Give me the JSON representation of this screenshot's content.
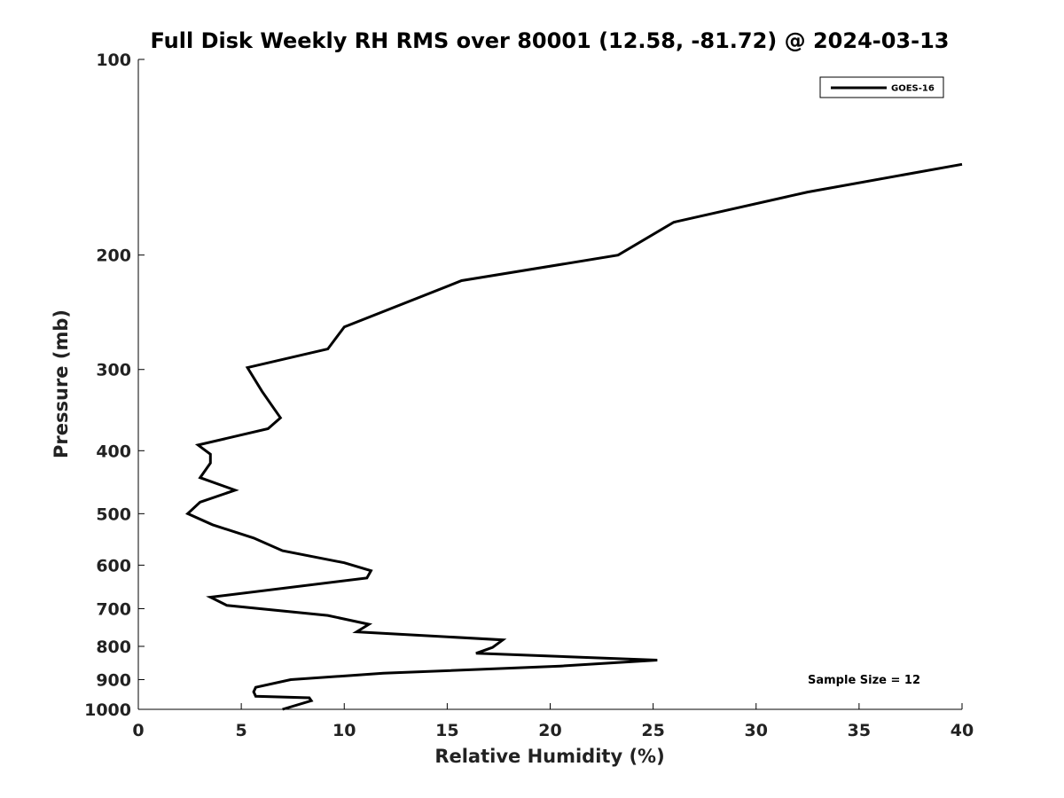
{
  "chart_data": {
    "type": "line",
    "title": "Full Disk Weekly RH RMS over 80001 (12.58, -81.72) @ 2024-03-13",
    "xlabel": "Relative Humidity (%)",
    "ylabel": "Pressure (mb)",
    "xlim": [
      0,
      40
    ],
    "ylim": [
      100,
      1000
    ],
    "yscale": "log-reversed",
    "grid": false,
    "legend_position": "top-right",
    "x_ticks": [
      0,
      5,
      10,
      15,
      20,
      25,
      30,
      35,
      40
    ],
    "x_tick_labels": [
      "0",
      "5",
      "10",
      "15",
      "20",
      "25",
      "30",
      "35",
      "40"
    ],
    "y_ticks": [
      100,
      200,
      300,
      400,
      500,
      600,
      700,
      800,
      900,
      1000
    ],
    "y_tick_labels": [
      "100",
      "200",
      "300",
      "400",
      "500",
      "600",
      "700",
      "800",
      "900",
      "1000"
    ],
    "series": [
      {
        "name": "GOES-16",
        "color": "#000000",
        "x": [
          40.0,
          32.5,
          26.0,
          23.3,
          15.7,
          10.0,
          9.2,
          5.3,
          6.0,
          6.6,
          6.9,
          6.3,
          2.9,
          3.5,
          3.5,
          3.0,
          4.7,
          3.0,
          2.4,
          3.6,
          5.6,
          7.0,
          10.0,
          11.3,
          11.1,
          3.5,
          4.3,
          9.2,
          11.2,
          10.6,
          17.7,
          17.2,
          16.4,
          25.2,
          20.5,
          11.9,
          7.4,
          5.7,
          5.6,
          5.7,
          8.3,
          8.4,
          7.0
        ],
        "y": [
          145,
          160,
          178,
          200,
          219,
          258,
          279,
          298,
          324,
          345,
          356,
          370,
          392,
          405,
          418,
          440,
          460,
          480,
          500,
          520,
          545,
          570,
          595,
          612,
          628,
          672,
          692,
          717,
          740,
          760,
          782,
          803,
          820,
          840,
          858,
          880,
          900,
          925,
          940,
          955,
          960,
          970,
          1000
        ]
      }
    ],
    "annotations": [
      "Sample Size = 12"
    ]
  }
}
